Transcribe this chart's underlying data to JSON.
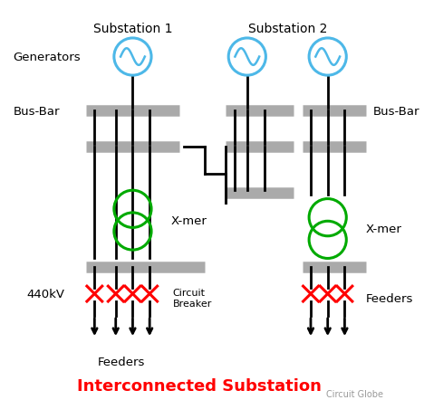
{
  "title": "Interconnected Substation",
  "title_color": "#ff0000",
  "title_fontsize": 13,
  "watermark": "Circuit Globe",
  "bg_color": "#ffffff",
  "line_color": "#000000",
  "bar_color": "#aaaaaa",
  "generator_color": "#4db8e8",
  "transformer_color": "#00aa00",
  "breaker_color": "#ff0000",
  "sub1_label": "Substation 1",
  "sub2_label": "Substation 2",
  "generators_label": "Generators",
  "busbar_label": "Bus-Bar",
  "xmer_label": "X-mer",
  "voltage_label": "440kV",
  "feeders_label": "Feeders",
  "feeders2_label": "Feeders",
  "cb_label": "Circuit\nBreaker"
}
